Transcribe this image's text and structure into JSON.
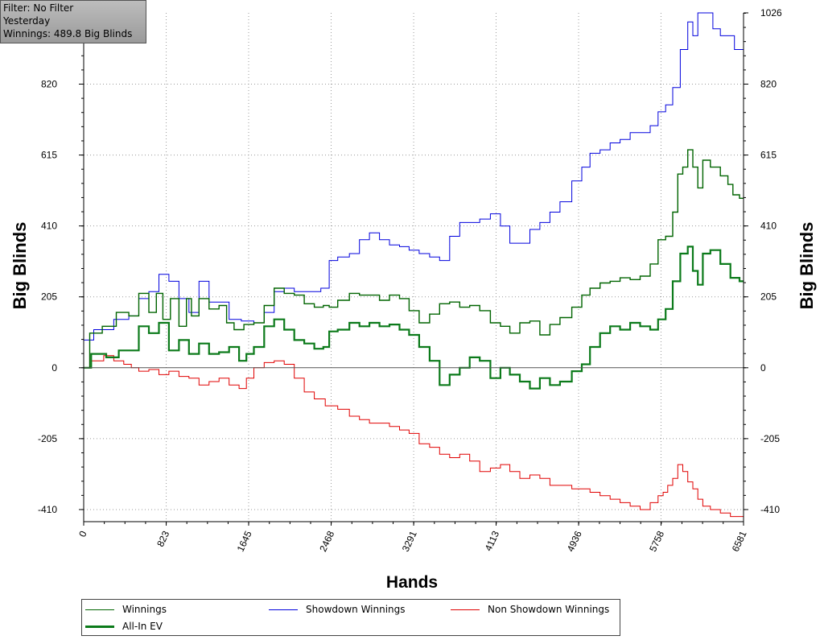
{
  "info": {
    "filter": "Filter: No Filter",
    "period": "Yesterday",
    "winnings": "Winnings: 489.8 Big Blinds"
  },
  "colors": {
    "winnings": "#006400",
    "all_in_ev": "#0b7a1a",
    "showdown": "#0000dd",
    "non_showdown": "#e00000",
    "grid": "#9a9a9a",
    "axis": "#000000"
  },
  "chart_data": {
    "type": "line",
    "xlabel": "Hands",
    "ylabel": "Big Blinds",
    "xlim": [
      0,
      6581
    ],
    "ylim": [
      -445,
      1026
    ],
    "x_ticks": [
      "0",
      "823",
      "1645",
      "2468",
      "3291",
      "4113",
      "4936",
      "5758",
      "6581"
    ],
    "y_ticks": [
      "-410",
      "-205",
      "0",
      "205",
      "410",
      "615",
      "820",
      "1026"
    ],
    "legend": [
      "Winnings",
      "All-In EV",
      "Showdown Winnings",
      "Non Showdown Winnings"
    ],
    "series": [
      {
        "name": "Winnings",
        "color": "#006400",
        "points": [
          [
            0,
            0
          ],
          [
            120,
            100
          ],
          [
            250,
            120
          ],
          [
            400,
            160
          ],
          [
            500,
            150
          ],
          [
            600,
            215
          ],
          [
            700,
            160
          ],
          [
            750,
            215
          ],
          [
            830,
            140
          ],
          [
            900,
            200
          ],
          [
            1000,
            120
          ],
          [
            1050,
            200
          ],
          [
            1100,
            150
          ],
          [
            1200,
            200
          ],
          [
            1300,
            170
          ],
          [
            1400,
            180
          ],
          [
            1450,
            130
          ],
          [
            1550,
            110
          ],
          [
            1645,
            125
          ],
          [
            1750,
            130
          ],
          [
            1850,
            180
          ],
          [
            1950,
            230
          ],
          [
            2050,
            215
          ],
          [
            2150,
            210
          ],
          [
            2250,
            185
          ],
          [
            2350,
            175
          ],
          [
            2430,
            180
          ],
          [
            2468,
            175
          ],
          [
            2600,
            195
          ],
          [
            2700,
            215
          ],
          [
            2800,
            210
          ],
          [
            2900,
            210
          ],
          [
            3000,
            195
          ],
          [
            3100,
            210
          ],
          [
            3200,
            200
          ],
          [
            3291,
            165
          ],
          [
            3400,
            130
          ],
          [
            3500,
            155
          ],
          [
            3600,
            185
          ],
          [
            3700,
            190
          ],
          [
            3800,
            175
          ],
          [
            3900,
            180
          ],
          [
            4000,
            165
          ],
          [
            4113,
            130
          ],
          [
            4200,
            120
          ],
          [
            4300,
            100
          ],
          [
            4400,
            130
          ],
          [
            4500,
            135
          ],
          [
            4600,
            95
          ],
          [
            4700,
            125
          ],
          [
            4800,
            145
          ],
          [
            4936,
            175
          ],
          [
            5000,
            210
          ],
          [
            5100,
            230
          ],
          [
            5200,
            245
          ],
          [
            5300,
            250
          ],
          [
            5400,
            260
          ],
          [
            5500,
            255
          ],
          [
            5600,
            265
          ],
          [
            5700,
            300
          ],
          [
            5758,
            370
          ],
          [
            5850,
            380
          ],
          [
            5900,
            450
          ],
          [
            5950,
            560
          ],
          [
            6000,
            580
          ],
          [
            6050,
            630
          ],
          [
            6100,
            580
          ],
          [
            6150,
            520
          ],
          [
            6200,
            600
          ],
          [
            6300,
            580
          ],
          [
            6400,
            555
          ],
          [
            6450,
            530
          ],
          [
            6500,
            500
          ],
          [
            6581,
            490
          ]
        ]
      },
      {
        "name": "All-In EV",
        "color": "#0b7a1a",
        "points": [
          [
            0,
            0
          ],
          [
            150,
            40
          ],
          [
            300,
            30
          ],
          [
            400,
            50
          ],
          [
            500,
            50
          ],
          [
            600,
            120
          ],
          [
            700,
            100
          ],
          [
            800,
            130
          ],
          [
            900,
            50
          ],
          [
            1000,
            80
          ],
          [
            1100,
            40
          ],
          [
            1200,
            70
          ],
          [
            1300,
            40
          ],
          [
            1400,
            45
          ],
          [
            1500,
            60
          ],
          [
            1600,
            20
          ],
          [
            1645,
            40
          ],
          [
            1750,
            60
          ],
          [
            1850,
            120
          ],
          [
            1950,
            140
          ],
          [
            2050,
            110
          ],
          [
            2150,
            80
          ],
          [
            2250,
            70
          ],
          [
            2350,
            55
          ],
          [
            2430,
            60
          ],
          [
            2468,
            105
          ],
          [
            2600,
            110
          ],
          [
            2700,
            130
          ],
          [
            2800,
            120
          ],
          [
            2900,
            130
          ],
          [
            3000,
            120
          ],
          [
            3100,
            125
          ],
          [
            3200,
            110
          ],
          [
            3291,
            95
          ],
          [
            3400,
            60
          ],
          [
            3500,
            20
          ],
          [
            3600,
            -50
          ],
          [
            3700,
            -20
          ],
          [
            3800,
            0
          ],
          [
            3900,
            30
          ],
          [
            4000,
            20
          ],
          [
            4113,
            -30
          ],
          [
            4200,
            0
          ],
          [
            4300,
            -20
          ],
          [
            4400,
            -40
          ],
          [
            4500,
            -60
          ],
          [
            4600,
            -30
          ],
          [
            4700,
            -50
          ],
          [
            4800,
            -40
          ],
          [
            4936,
            -10
          ],
          [
            5000,
            10
          ],
          [
            5100,
            60
          ],
          [
            5200,
            100
          ],
          [
            5300,
            120
          ],
          [
            5400,
            110
          ],
          [
            5500,
            130
          ],
          [
            5600,
            120
          ],
          [
            5700,
            110
          ],
          [
            5758,
            140
          ],
          [
            5850,
            170
          ],
          [
            5900,
            250
          ],
          [
            6000,
            330
          ],
          [
            6050,
            350
          ],
          [
            6100,
            280
          ],
          [
            6150,
            240
          ],
          [
            6200,
            330
          ],
          [
            6300,
            340
          ],
          [
            6400,
            300
          ],
          [
            6500,
            260
          ],
          [
            6581,
            250
          ]
        ]
      },
      {
        "name": "Showdown Winnings",
        "color": "#0000dd",
        "points": [
          [
            0,
            80
          ],
          [
            200,
            110
          ],
          [
            400,
            140
          ],
          [
            500,
            150
          ],
          [
            600,
            200
          ],
          [
            700,
            220
          ],
          [
            800,
            270
          ],
          [
            900,
            250
          ],
          [
            1000,
            200
          ],
          [
            1100,
            160
          ],
          [
            1200,
            250
          ],
          [
            1300,
            190
          ],
          [
            1400,
            190
          ],
          [
            1500,
            140
          ],
          [
            1645,
            135
          ],
          [
            1750,
            130
          ],
          [
            1850,
            160
          ],
          [
            1950,
            220
          ],
          [
            2050,
            230
          ],
          [
            2150,
            220
          ],
          [
            2300,
            220
          ],
          [
            2430,
            230
          ],
          [
            2468,
            310
          ],
          [
            2600,
            320
          ],
          [
            2700,
            330
          ],
          [
            2800,
            370
          ],
          [
            2900,
            390
          ],
          [
            3000,
            370
          ],
          [
            3100,
            355
          ],
          [
            3200,
            350
          ],
          [
            3291,
            340
          ],
          [
            3400,
            330
          ],
          [
            3500,
            320
          ],
          [
            3600,
            310
          ],
          [
            3700,
            380
          ],
          [
            3800,
            420
          ],
          [
            3900,
            420
          ],
          [
            4000,
            430
          ],
          [
            4113,
            445
          ],
          [
            4200,
            410
          ],
          [
            4300,
            360
          ],
          [
            4400,
            360
          ],
          [
            4500,
            400
          ],
          [
            4600,
            420
          ],
          [
            4700,
            450
          ],
          [
            4800,
            480
          ],
          [
            4936,
            540
          ],
          [
            5000,
            580
          ],
          [
            5100,
            620
          ],
          [
            5200,
            630
          ],
          [
            5300,
            650
          ],
          [
            5400,
            660
          ],
          [
            5500,
            680
          ],
          [
            5600,
            680
          ],
          [
            5700,
            700
          ],
          [
            5758,
            740
          ],
          [
            5850,
            760
          ],
          [
            5900,
            810
          ],
          [
            6000,
            920
          ],
          [
            6050,
            1000
          ],
          [
            6100,
            960
          ],
          [
            6150,
            1026
          ],
          [
            6250,
            1030
          ],
          [
            6300,
            980
          ],
          [
            6400,
            960
          ],
          [
            6581,
            920
          ]
        ]
      },
      {
        "name": "Non Showdown Winnings",
        "color": "#e00000",
        "points": [
          [
            0,
            0
          ],
          [
            150,
            20
          ],
          [
            250,
            35
          ],
          [
            350,
            20
          ],
          [
            450,
            10
          ],
          [
            500,
            0
          ],
          [
            600,
            -10
          ],
          [
            700,
            -5
          ],
          [
            800,
            -20
          ],
          [
            900,
            -10
          ],
          [
            1000,
            -25
          ],
          [
            1100,
            -30
          ],
          [
            1200,
            -50
          ],
          [
            1300,
            -40
          ],
          [
            1400,
            -30
          ],
          [
            1500,
            -50
          ],
          [
            1600,
            -60
          ],
          [
            1645,
            -30
          ],
          [
            1750,
            0
          ],
          [
            1850,
            15
          ],
          [
            1950,
            20
          ],
          [
            2050,
            10
          ],
          [
            2150,
            -30
          ],
          [
            2250,
            -70
          ],
          [
            2350,
            -90
          ],
          [
            2468,
            -110
          ],
          [
            2600,
            -120
          ],
          [
            2700,
            -140
          ],
          [
            2800,
            -150
          ],
          [
            2900,
            -160
          ],
          [
            3000,
            -160
          ],
          [
            3100,
            -170
          ],
          [
            3200,
            -180
          ],
          [
            3291,
            -190
          ],
          [
            3400,
            -220
          ],
          [
            3500,
            -230
          ],
          [
            3600,
            -250
          ],
          [
            3700,
            -260
          ],
          [
            3800,
            -250
          ],
          [
            3900,
            -270
          ],
          [
            4000,
            -300
          ],
          [
            4113,
            -290
          ],
          [
            4200,
            -280
          ],
          [
            4300,
            -300
          ],
          [
            4400,
            -320
          ],
          [
            4500,
            -310
          ],
          [
            4600,
            -320
          ],
          [
            4700,
            -340
          ],
          [
            4800,
            -340
          ],
          [
            4936,
            -350
          ],
          [
            5000,
            -350
          ],
          [
            5100,
            -360
          ],
          [
            5200,
            -370
          ],
          [
            5300,
            -380
          ],
          [
            5400,
            -390
          ],
          [
            5500,
            -400
          ],
          [
            5600,
            -410
          ],
          [
            5700,
            -390
          ],
          [
            5758,
            -370
          ],
          [
            5800,
            -360
          ],
          [
            5850,
            -340
          ],
          [
            5900,
            -320
          ],
          [
            5950,
            -280
          ],
          [
            6000,
            -300
          ],
          [
            6050,
            -330
          ],
          [
            6100,
            -350
          ],
          [
            6150,
            -380
          ],
          [
            6200,
            -400
          ],
          [
            6300,
            -410
          ],
          [
            6400,
            -420
          ],
          [
            6500,
            -430
          ],
          [
            6581,
            -430
          ]
        ]
      }
    ]
  }
}
